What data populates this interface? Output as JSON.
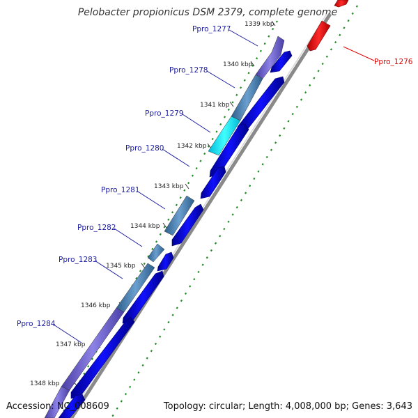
{
  "title": "Pelobacter propionicus DSM 2379, complete genome",
  "accession": "Accession: NC_008609",
  "summary": "Topology: circular; Length: 4,008,000 bp; Genes: 3,643",
  "kbp_ticks": [
    "1339 kbp",
    "1340 kbp",
    "1341 kbp",
    "1342 kbp",
    "1343 kbp",
    "1344 kbp",
    "1345 kbp",
    "1346 kbp",
    "1347 kbp",
    "1348 kbp"
  ],
  "gene_labels": [
    "Ppro_1277",
    "Ppro_1278",
    "Ppro_1279",
    "Ppro_1280",
    "Ppro_1281",
    "Ppro_1282",
    "Ppro_1283",
    "Ppro_1284",
    "Ppro_1276"
  ],
  "colors": {
    "blue": "#0000ee",
    "steel": "#4a7fae",
    "purple": "#6b5fc6",
    "cyan": "#00e0f0",
    "red": "#ee0000",
    "backbone": "#8a8a8a",
    "tick": "#228b22",
    "label_blue": "#1a1aa0",
    "label_red": "#dd0000"
  }
}
